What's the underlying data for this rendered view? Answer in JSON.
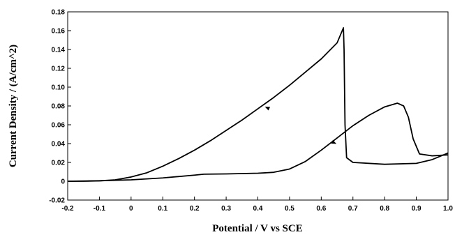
{
  "chart_data": {
    "type": "line",
    "title": "",
    "xlabel": "Potential / V vs SCE",
    "ylabel": "Current Density / (A/cm^2)",
    "xlim": [
      -0.2,
      1.0
    ],
    "ylim": [
      -0.02,
      0.18
    ],
    "x_ticks": [
      -0.2,
      -0.1,
      0,
      0.1,
      0.2,
      0.3,
      0.4,
      0.5,
      0.6,
      0.7,
      0.8,
      0.9,
      1.0
    ],
    "x_tick_labels": [
      "-0.2",
      "-0.1",
      "0",
      "0.1",
      "0.2",
      "0.3",
      "0.4",
      "0.5",
      "0.6",
      "0.7",
      "0.8",
      "0.9",
      "1.0"
    ],
    "y_ticks": [
      -0.02,
      0,
      0.02,
      0.04,
      0.06,
      0.08,
      0.1,
      0.12,
      0.14,
      0.16,
      0.18
    ],
    "y_tick_labels": [
      "-0.02",
      "0",
      "0.02",
      "0.04",
      "0.06",
      "0.08",
      "0.10",
      "0.12",
      "0.14",
      "0.16",
      "0.18"
    ],
    "grid": false,
    "legend": "none",
    "line_color": "#000000",
    "series": [
      {
        "x": [
          -0.2,
          -0.1,
          0.0,
          0.1,
          0.2,
          0.23,
          0.3,
          0.4,
          0.45,
          0.5,
          0.55,
          0.6,
          0.65,
          0.7,
          0.75,
          0.8,
          0.84,
          0.86,
          0.875,
          0.89,
          0.91,
          0.95,
          1.0
        ],
        "y": [
          0.0,
          0.0005,
          0.0015,
          0.0035,
          0.0065,
          0.0075,
          0.0078,
          0.0085,
          0.0095,
          0.013,
          0.021,
          0.033,
          0.046,
          0.059,
          0.07,
          0.079,
          0.083,
          0.08,
          0.068,
          0.045,
          0.029,
          0.027,
          0.028
        ]
      },
      {
        "x": [
          1.0,
          0.95,
          0.9,
          0.8,
          0.7,
          0.68,
          0.675,
          0.672,
          0.67,
          0.65,
          0.6,
          0.55,
          0.5,
          0.45,
          0.4,
          0.35,
          0.3,
          0.25,
          0.2,
          0.15,
          0.1,
          0.05,
          0.0,
          -0.05,
          -0.1,
          -0.15,
          -0.2
        ],
        "y": [
          0.03,
          0.023,
          0.019,
          0.018,
          0.02,
          0.025,
          0.06,
          0.14,
          0.163,
          0.147,
          0.13,
          0.116,
          0.102,
          0.089,
          0.077,
          0.065,
          0.054,
          0.043,
          0.033,
          0.024,
          0.016,
          0.009,
          0.0045,
          0.0015,
          0.0004,
          0.0,
          0.0
        ]
      }
    ],
    "arrows": [
      {
        "x": 0.43,
        "y": 0.078,
        "points_to": "lower-left"
      },
      {
        "x": 0.64,
        "y": 0.041,
        "points_to": "upper-right"
      }
    ]
  }
}
